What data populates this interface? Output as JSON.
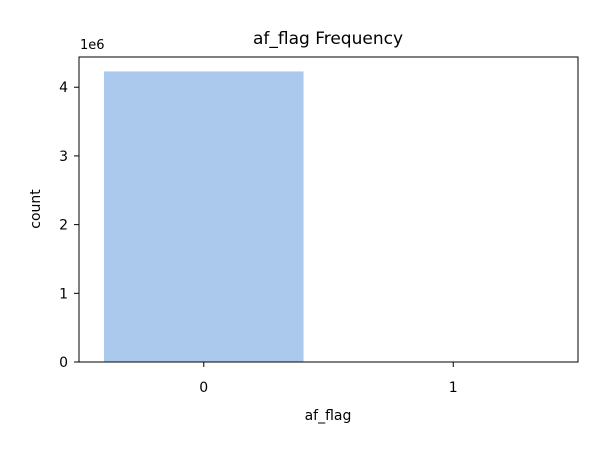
{
  "chart_data": {
    "type": "bar",
    "title": "af_flag Frequency",
    "xlabel": "af_flag",
    "ylabel": "count",
    "categories": [
      "0",
      "1"
    ],
    "values": [
      4230000,
      0
    ],
    "ylim": [
      0,
      4440000
    ],
    "yticks": [
      0,
      1,
      2,
      3,
      4
    ],
    "ytick_labels": [
      "0",
      "1",
      "2",
      "3",
      "4"
    ],
    "y_scale_label": "1e6",
    "bar_color": "#abc9ed",
    "grid": false,
    "legend": "none"
  }
}
